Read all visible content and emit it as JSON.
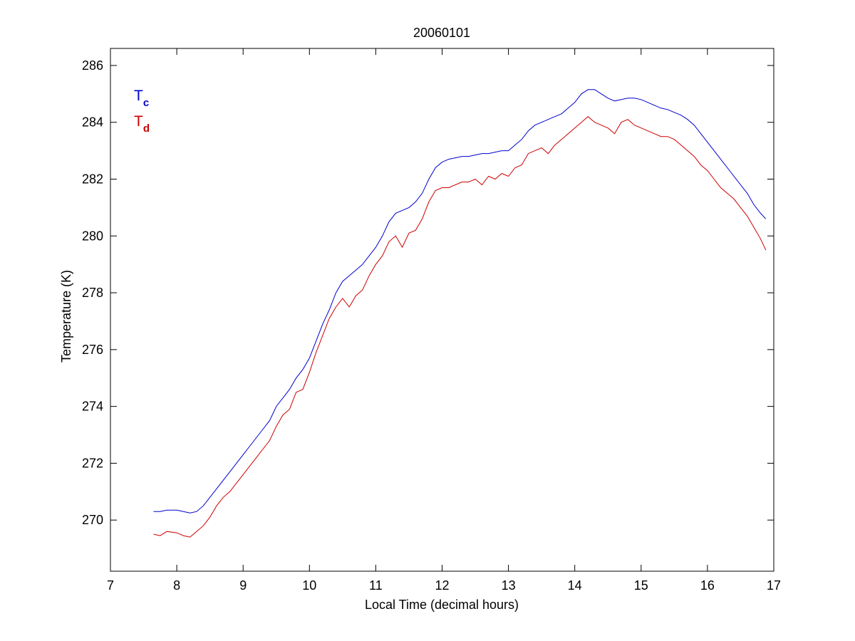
{
  "chart_data": {
    "type": "line",
    "title": "20060101",
    "xlabel": "Local Time (decimal hours)",
    "ylabel": "Temperature (K)",
    "xlim": [
      7,
      17
    ],
    "ylim": [
      268.2,
      286.6
    ],
    "xticks": [
      7,
      8,
      9,
      10,
      11,
      12,
      13,
      14,
      15,
      16,
      17
    ],
    "yticks": [
      270,
      272,
      274,
      276,
      278,
      280,
      282,
      284,
      286
    ],
    "grid": false,
    "legend_placement": "top-left",
    "series": [
      {
        "name": "T",
        "subscript": "c",
        "color": "#0000cc",
        "x": [
          7.65,
          7.75,
          7.85,
          8.0,
          8.1,
          8.2,
          8.3,
          8.4,
          8.5,
          8.6,
          8.7,
          8.8,
          8.9,
          9.0,
          9.1,
          9.2,
          9.3,
          9.4,
          9.5,
          9.6,
          9.7,
          9.8,
          9.9,
          10.0,
          10.1,
          10.2,
          10.3,
          10.4,
          10.5,
          10.6,
          10.7,
          10.8,
          10.9,
          11.0,
          11.1,
          11.2,
          11.3,
          11.4,
          11.5,
          11.6,
          11.7,
          11.8,
          11.9,
          12.0,
          12.1,
          12.2,
          12.3,
          12.4,
          12.5,
          12.6,
          12.7,
          12.8,
          12.9,
          13.0,
          13.1,
          13.2,
          13.3,
          13.4,
          13.5,
          13.6,
          13.7,
          13.8,
          13.9,
          14.0,
          14.1,
          14.2,
          14.3,
          14.4,
          14.5,
          14.6,
          14.7,
          14.8,
          14.9,
          15.0,
          15.1,
          15.2,
          15.3,
          15.4,
          15.5,
          15.6,
          15.7,
          15.8,
          15.9,
          16.0,
          16.1,
          16.2,
          16.3,
          16.4,
          16.5,
          16.6,
          16.7,
          16.8,
          16.88
        ],
        "y": [
          270.3,
          270.3,
          270.35,
          270.35,
          270.3,
          270.25,
          270.3,
          270.5,
          270.8,
          271.1,
          271.4,
          271.7,
          272.0,
          272.3,
          272.6,
          272.9,
          273.2,
          273.5,
          274.0,
          274.3,
          274.6,
          275.0,
          275.3,
          275.7,
          276.3,
          276.9,
          277.4,
          278.0,
          278.4,
          278.6,
          278.8,
          279.0,
          279.3,
          279.6,
          280.0,
          280.5,
          280.8,
          280.9,
          281.0,
          281.2,
          281.5,
          282.0,
          282.4,
          282.6,
          282.7,
          282.75,
          282.8,
          282.8,
          282.85,
          282.9,
          282.9,
          282.95,
          283.0,
          283.0,
          283.2,
          283.4,
          283.7,
          283.9,
          284.0,
          284.1,
          284.2,
          284.3,
          284.5,
          284.7,
          285.0,
          285.15,
          285.15,
          285.0,
          284.85,
          284.75,
          284.8,
          284.85,
          284.85,
          284.8,
          284.7,
          284.6,
          284.5,
          284.45,
          284.35,
          284.25,
          284.1,
          283.9,
          283.6,
          283.3,
          283.0,
          282.7,
          282.4,
          282.1,
          281.8,
          281.5,
          281.1,
          280.8,
          280.6
        ]
      },
      {
        "name": "T",
        "subscript": "d",
        "color": "#cc0000",
        "x": [
          7.65,
          7.75,
          7.85,
          8.0,
          8.1,
          8.2,
          8.3,
          8.4,
          8.5,
          8.6,
          8.7,
          8.8,
          8.9,
          9.0,
          9.1,
          9.2,
          9.3,
          9.4,
          9.5,
          9.6,
          9.7,
          9.8,
          9.9,
          10.0,
          10.1,
          10.2,
          10.3,
          10.4,
          10.5,
          10.6,
          10.7,
          10.8,
          10.9,
          11.0,
          11.1,
          11.2,
          11.3,
          11.4,
          11.5,
          11.6,
          11.7,
          11.8,
          11.9,
          12.0,
          12.1,
          12.2,
          12.3,
          12.4,
          12.5,
          12.6,
          12.7,
          12.8,
          12.9,
          13.0,
          13.1,
          13.2,
          13.3,
          13.4,
          13.5,
          13.6,
          13.7,
          13.8,
          13.9,
          14.0,
          14.1,
          14.2,
          14.3,
          14.4,
          14.5,
          14.6,
          14.7,
          14.8,
          14.9,
          15.0,
          15.1,
          15.2,
          15.3,
          15.4,
          15.5,
          15.6,
          15.7,
          15.8,
          15.9,
          16.0,
          16.1,
          16.2,
          16.3,
          16.4,
          16.5,
          16.6,
          16.7,
          16.8,
          16.88
        ],
        "y": [
          269.5,
          269.45,
          269.6,
          269.55,
          269.45,
          269.4,
          269.6,
          269.8,
          270.1,
          270.5,
          270.8,
          271.0,
          271.3,
          271.6,
          271.9,
          272.2,
          272.5,
          272.8,
          273.3,
          273.7,
          273.9,
          274.5,
          274.6,
          275.2,
          275.9,
          276.5,
          277.1,
          277.5,
          277.8,
          277.5,
          277.9,
          278.1,
          278.6,
          279.0,
          279.3,
          279.8,
          280.0,
          279.6,
          280.1,
          280.2,
          280.6,
          281.2,
          281.6,
          281.7,
          281.7,
          281.8,
          281.9,
          281.9,
          282.0,
          281.8,
          282.1,
          282.0,
          282.2,
          282.1,
          282.4,
          282.5,
          282.9,
          283.0,
          283.1,
          282.9,
          283.2,
          283.4,
          283.6,
          283.8,
          284.0,
          284.2,
          284.0,
          283.9,
          283.8,
          283.6,
          284.0,
          284.1,
          283.9,
          283.8,
          283.7,
          283.6,
          283.5,
          283.5,
          283.4,
          283.2,
          283.0,
          282.8,
          282.5,
          282.3,
          282.0,
          281.7,
          281.5,
          281.3,
          281.0,
          280.7,
          280.3,
          279.9,
          279.5
        ]
      }
    ]
  }
}
